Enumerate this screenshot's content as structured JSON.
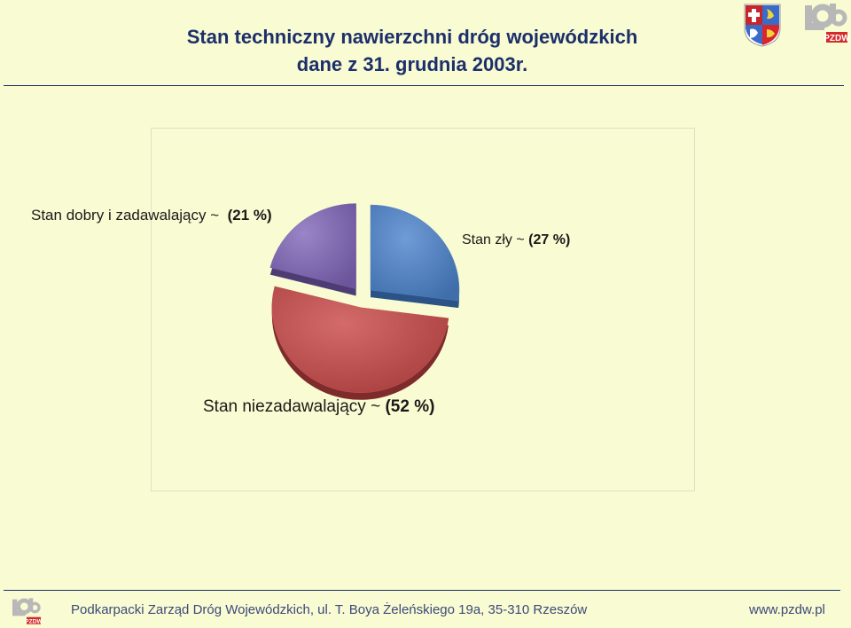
{
  "header": {
    "title_line1": "Stan techniczny nawierzchni dróg wojewódzkich",
    "title_line2": "dane z 31. grudnia 2003r.",
    "logo_crest": "podkarpackie-coat-of-arms-icon",
    "logo_brand": "pzdw-logo-icon",
    "logo_brand_text": "PZDW"
  },
  "chart_data": {
    "type": "pie",
    "style": "3d exploded",
    "slices": [
      {
        "label": "Stan dobry i zadawalający",
        "sep": "~",
        "pct_text": "(21 %)",
        "value": 21,
        "color": "#7f67ad"
      },
      {
        "label": "Stan zły",
        "sep": "~",
        "pct_text": "(27 %)",
        "value": 27,
        "color": "#4e7fc1"
      },
      {
        "label": "Stan niezadawalający",
        "sep": "~",
        "pct_text": "(52 %)",
        "value": 52,
        "color": "#c14f4f"
      }
    ]
  },
  "footer": {
    "address": "Podkarpacki Zarząd Dróg Wojewódzkich,  ul. T. Boya Żeleńskiego 19a, 35-310 Rzeszów",
    "url": "www.pzdw.pl"
  }
}
